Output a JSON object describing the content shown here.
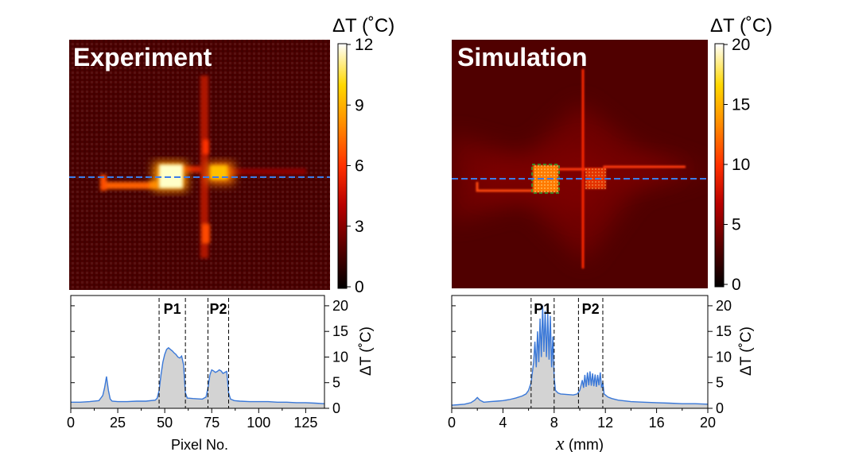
{
  "chart_data": [
    {
      "type": "heatmap",
      "title": "Experiment",
      "colorbar": {
        "label_symbol": "ΔT",
        "label_unit": "(˚C)",
        "ticks": [
          0,
          3,
          6,
          9,
          12
        ],
        "range": [
          0,
          12
        ]
      },
      "colormap": [
        "#000000",
        "#5a0000",
        "#b80000",
        "#ff3000",
        "#ff8c00",
        "#ffd800",
        "#ffffff"
      ],
      "background_level": 0.8,
      "features": [
        {
          "kind": "horizontal-wire",
          "level": 5.5
        },
        {
          "kind": "vertical-wire",
          "level": 6.0
        },
        {
          "kind": "hot-spot",
          "label": "P1",
          "level": 12.0
        },
        {
          "kind": "hot-spot",
          "label": "P2",
          "level": 8.5
        }
      ],
      "line_cut": "dashed blue horizontal line"
    },
    {
      "type": "area",
      "title": "",
      "xlabel": "Pixel No.",
      "ylabel": "ΔT (˚C)",
      "xlim": [
        0,
        135
      ],
      "ylim": [
        0,
        22
      ],
      "xticks": [
        0,
        25,
        50,
        75,
        100,
        125
      ],
      "yticks": [
        0,
        5,
        10,
        15,
        20
      ],
      "regions": [
        {
          "label": "P1",
          "x": [
            47,
            61
          ]
        },
        {
          "label": "P2",
          "x": [
            73,
            84
          ]
        }
      ],
      "series": [
        {
          "x": [
            0,
            5,
            10,
            15,
            17,
            18,
            19,
            20,
            21,
            22,
            25,
            30,
            35,
            40,
            45,
            46,
            47,
            48,
            49,
            50,
            51,
            52,
            53,
            54,
            55,
            56,
            57,
            58,
            59,
            60,
            61,
            62,
            65,
            70,
            72,
            73,
            74,
            75,
            76,
            77,
            78,
            79,
            80,
            81,
            82,
            83,
            84,
            85,
            87,
            90,
            95,
            100,
            105,
            110,
            115,
            120,
            125,
            130,
            135
          ],
          "y": [
            1.2,
            1.2,
            1.3,
            1.5,
            2.5,
            4.0,
            6.2,
            3.5,
            1.8,
            1.4,
            1.3,
            1.3,
            1.4,
            1.4,
            1.6,
            2.0,
            3.5,
            6.5,
            9.0,
            10.5,
            11.5,
            11.8,
            11.5,
            11.2,
            10.8,
            10.5,
            10.0,
            9.8,
            10.2,
            8.5,
            3.0,
            2.0,
            1.9,
            1.8,
            2.2,
            4.0,
            6.5,
            7.5,
            7.3,
            7.0,
            7.2,
            7.5,
            7.3,
            6.8,
            7.0,
            7.2,
            3.0,
            1.8,
            1.5,
            1.4,
            1.3,
            1.3,
            1.3,
            1.2,
            1.2,
            1.1,
            1.1,
            1.0,
            0.9
          ]
        }
      ]
    },
    {
      "type": "heatmap",
      "title": "Simulation",
      "colorbar": {
        "label_symbol": "ΔT",
        "label_unit": "(˚C)",
        "ticks": [
          0,
          5,
          10,
          15,
          20
        ],
        "range": [
          0,
          20
        ]
      },
      "colormap": [
        "#000000",
        "#5a0000",
        "#b80000",
        "#ff3000",
        "#ff8c00",
        "#ffd800",
        "#ffffff"
      ],
      "background_level": 2.2,
      "features": [
        {
          "kind": "horizontal-wire",
          "level": 10.0
        },
        {
          "kind": "vertical-wire",
          "level": 9.0
        },
        {
          "kind": "hot-spot",
          "label": "P1",
          "level": 12.0
        },
        {
          "kind": "hot-spot",
          "label": "P2",
          "level": 7.0
        }
      ],
      "line_cut": "dashed blue horizontal line",
      "p1_marker": "dashed green box"
    },
    {
      "type": "area",
      "title": "",
      "xlabel_symbol": "x",
      "xlabel_unit": "(mm)",
      "ylabel": "ΔT (˚C)",
      "xlim": [
        0,
        20
      ],
      "ylim": [
        0,
        22
      ],
      "xticks": [
        0,
        4,
        8,
        12,
        16,
        20
      ],
      "yticks": [
        0,
        5,
        10,
        15,
        20
      ],
      "regions": [
        {
          "label": "P1",
          "x": [
            6.2,
            8.0
          ]
        },
        {
          "label": "P2",
          "x": [
            9.9,
            11.8
          ]
        }
      ],
      "series": [
        {
          "x": [
            0,
            0.5,
            1.0,
            1.5,
            1.8,
            2.0,
            2.2,
            2.5,
            3.0,
            3.5,
            4.0,
            4.5,
            5.0,
            5.5,
            5.8,
            6.0,
            6.2,
            6.4,
            6.5,
            6.6,
            6.7,
            6.8,
            6.9,
            7.0,
            7.1,
            7.2,
            7.3,
            7.4,
            7.5,
            7.6,
            7.7,
            7.8,
            7.9,
            8.0,
            8.1,
            8.3,
            8.5,
            9.0,
            9.5,
            9.8,
            10.0,
            10.2,
            10.3,
            10.4,
            10.5,
            10.6,
            10.7,
            10.8,
            10.9,
            11.0,
            11.1,
            11.2,
            11.3,
            11.4,
            11.5,
            11.6,
            11.7,
            11.8,
            11.9,
            12.2,
            12.5,
            13,
            14,
            15,
            16,
            17,
            18,
            19,
            20
          ],
          "y": [
            0.6,
            0.7,
            0.8,
            1.1,
            1.6,
            2.1,
            1.6,
            1.2,
            1.3,
            1.4,
            1.5,
            1.7,
            2.0,
            2.4,
            2.8,
            3.5,
            5.0,
            9.0,
            13.0,
            8.0,
            15.0,
            9.0,
            17.5,
            10.0,
            20.0,
            11.0,
            19.0,
            10.0,
            18.5,
            9.5,
            18.0,
            8.0,
            14.0,
            6.0,
            3.5,
            3.0,
            2.8,
            2.7,
            2.6,
            2.8,
            3.5,
            5.5,
            4.0,
            6.5,
            4.2,
            7.0,
            4.5,
            7.2,
            4.4,
            6.8,
            4.3,
            6.6,
            4.2,
            6.5,
            4.5,
            7.0,
            4.0,
            5.0,
            2.8,
            2.2,
            1.9,
            1.6,
            1.3,
            1.2,
            1.1,
            1.0,
            0.9,
            0.9,
            0.8
          ]
        }
      ]
    }
  ]
}
